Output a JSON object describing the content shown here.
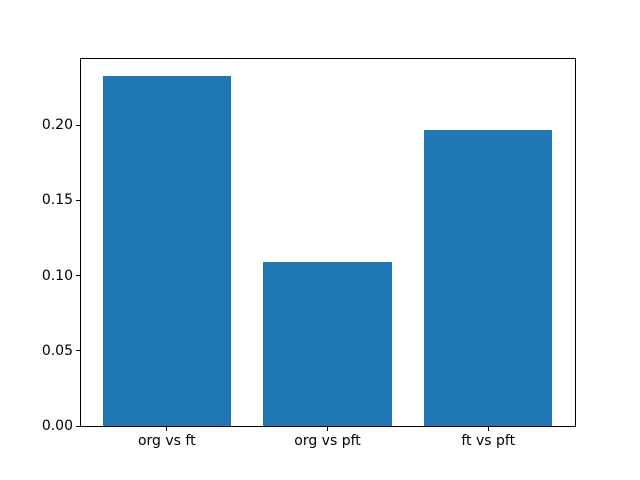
{
  "figure": {
    "background": "#ffffff"
  },
  "chart_data": {
    "type": "bar",
    "title": "",
    "xlabel": "",
    "ylabel": "",
    "categories": [
      "org vs ft",
      "org vs pft",
      "ft vs pft"
    ],
    "values": [
      0.233,
      0.109,
      0.197
    ],
    "yticks": [
      0,
      0.05,
      0.1,
      0.15,
      0.2
    ],
    "ytick_labels": [
      "0.00",
      "0.05",
      "0.10",
      "0.15",
      "0.20"
    ],
    "ylim": [
      0,
      0.2447
    ],
    "bar_color": "#1f77b4",
    "bar_width_fraction": 0.8,
    "grid": false,
    "legend": false,
    "axes_color": "#000000",
    "text_color": "#000000"
  }
}
